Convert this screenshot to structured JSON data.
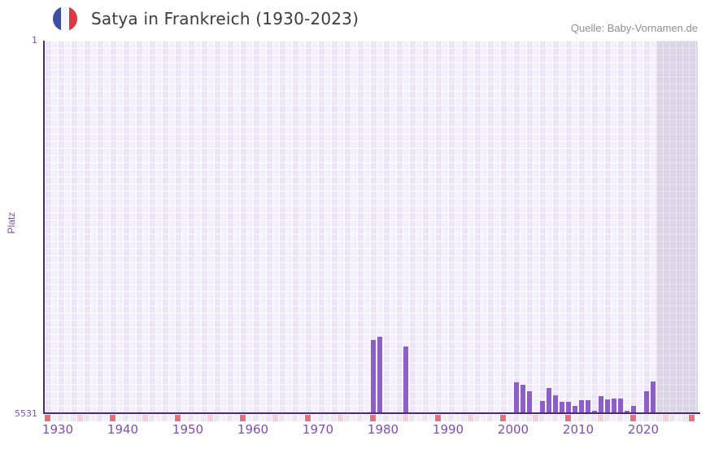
{
  "header": {
    "title": "Satya in Frankreich (1930-2023)",
    "source": "Quelle: Baby-Vornamen.de",
    "flag_icon": "france-flag-icon"
  },
  "colors": {
    "bar_color": "#8c5ec6",
    "axis_color": "#472a80",
    "tick_color": "#7b51ad",
    "title_color": "#3c3c41",
    "muted_color": "#8f8f94",
    "flag_blue": "#3d4fa1",
    "flag_white": "#f6f7f9",
    "flag_red": "#da3843",
    "strip_red": "#e8707e",
    "strip_pink": "#f4cdd9",
    "strip_base_even": "#ece6f7",
    "strip_base_odd": "#f4f0fb",
    "grid_light": "#f3effb",
    "grid_dark": "#ebe5f6",
    "nodata_band": "#dad6e5"
  },
  "chart_data": {
    "type": "bar",
    "title": "Satya in Frankreich (1930-2023)",
    "xlabel": "",
    "ylabel": "Platz",
    "grid": true,
    "legend": false,
    "y_axis": {
      "top_label": "1",
      "bottom_label": "5531",
      "min": 1,
      "max": 5531,
      "inverted": true,
      "note": "rank axis: 1 at top, 5531 at bottom; taller bar = better rank"
    },
    "x_axis": {
      "start_year": 1929,
      "end_year": 2029,
      "tick_labels": [
        "1930",
        "1940",
        "1950",
        "1960",
        "1970",
        "1980",
        "1990",
        "2000",
        "2010",
        "2020"
      ]
    },
    "no_data_region": {
      "from_year": 2023
    },
    "timeline_strip": {
      "cells": 100,
      "red_every": 10,
      "pink_offset": 5,
      "last_cell_red": true
    },
    "series": [
      {
        "name": "Platz",
        "points": [
          {
            "year": 1979,
            "rank": 4440
          },
          {
            "year": 1980,
            "rank": 4400
          },
          {
            "year": 1984,
            "rank": 4535
          },
          {
            "year": 2001,
            "rank": 5075
          },
          {
            "year": 2002,
            "rank": 5105
          },
          {
            "year": 2003,
            "rank": 5200
          },
          {
            "year": 2005,
            "rank": 5345
          },
          {
            "year": 2006,
            "rank": 5160
          },
          {
            "year": 2007,
            "rank": 5265
          },
          {
            "year": 2008,
            "rank": 5360
          },
          {
            "year": 2009,
            "rank": 5360
          },
          {
            "year": 2010,
            "rank": 5420
          },
          {
            "year": 2011,
            "rank": 5340
          },
          {
            "year": 2012,
            "rank": 5340
          },
          {
            "year": 2013,
            "rank": 5495
          },
          {
            "year": 2014,
            "rank": 5280
          },
          {
            "year": 2015,
            "rank": 5325
          },
          {
            "year": 2016,
            "rank": 5315
          },
          {
            "year": 2017,
            "rank": 5315
          },
          {
            "year": 2018,
            "rank": 5495
          },
          {
            "year": 2019,
            "rank": 5425
          },
          {
            "year": 2021,
            "rank": 5205
          },
          {
            "year": 2022,
            "rank": 5065
          }
        ]
      }
    ]
  }
}
